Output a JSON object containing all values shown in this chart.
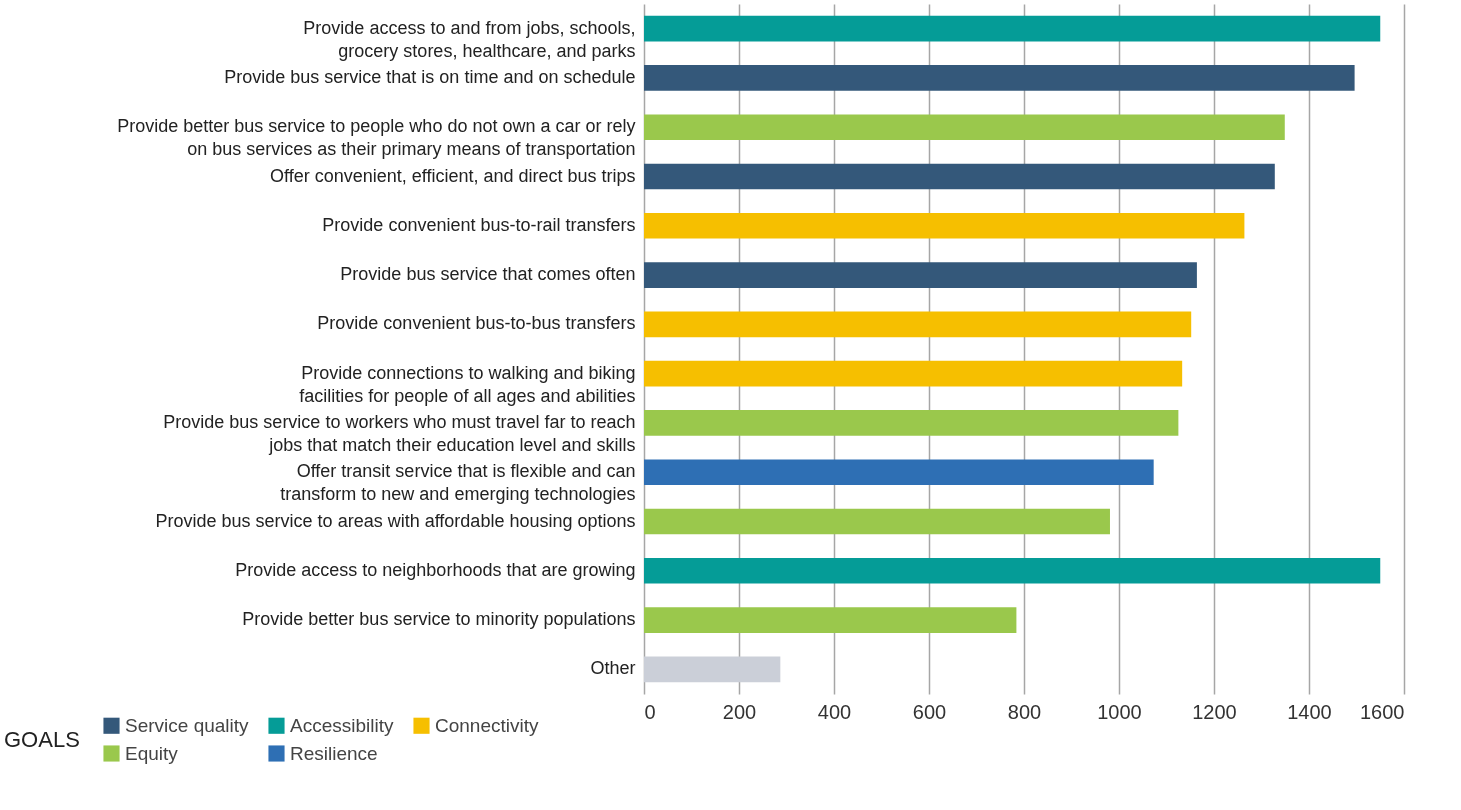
{
  "chart_data": {
    "type": "bar",
    "orientation": "horizontal",
    "categories": [
      "Provide access to and from jobs, schools, grocery stores, healthcare, and parks",
      "Provide bus service that is on time and on schedule",
      "Provide better bus service to people who do not own a car or rely on bus services as their primary means of transportation",
      "Offer convenient, efficient, and direct bus trips",
      "Provide convenient bus-to-rail transfers",
      "Provide bus service that comes often",
      "Provide convenient bus-to-bus transfers",
      "Provide connections to walking and biking facilities for people of all ages and abilities",
      "Provide bus service to workers who must travel far to reach jobs that match their education level and skills",
      "Offer transit service that is flexible and can transform to new and emerging technologies",
      "Provide bus service to areas with affordable housing options",
      "Provide access to neighborhoods that are growing",
      "Provide better bus service to minority populations",
      "Other"
    ],
    "series": [
      {
        "name": "Service quality",
        "color": "#34587a",
        "values": [
          null,
          1496,
          null,
          1328,
          null,
          1164,
          null,
          null,
          null,
          null,
          null,
          null,
          null,
          null
        ]
      },
      {
        "name": "Accessibility",
        "color": "#059c97",
        "values": [
          1550,
          null,
          null,
          null,
          null,
          null,
          null,
          null,
          null,
          null,
          null,
          1550,
          null,
          null
        ]
      },
      {
        "name": "Connectivity",
        "color": "#f6bf00",
        "values": [
          null,
          null,
          null,
          null,
          1264,
          null,
          1152,
          1133,
          null,
          null,
          null,
          null,
          null,
          null
        ]
      },
      {
        "name": "Equity",
        "color": "#9ac84c",
        "values": [
          null,
          null,
          1349,
          null,
          null,
          null,
          null,
          null,
          1125,
          null,
          981,
          null,
          784,
          null
        ]
      },
      {
        "name": "Resilience",
        "color": "#2e6fb4",
        "values": [
          null,
          null,
          null,
          null,
          null,
          null,
          null,
          null,
          null,
          1073,
          null,
          null,
          null,
          null
        ]
      },
      {
        "color": "#cbcfd8",
        "values": [
          null,
          null,
          null,
          null,
          null,
          null,
          null,
          null,
          null,
          null,
          null,
          null,
          null,
          287
        ]
      }
    ],
    "xlim": [
      0,
      1600
    ],
    "xticks": [
      0,
      200,
      400,
      600,
      800,
      1000,
      1200,
      1400,
      1600
    ],
    "grid": "x",
    "legend": "bottom left",
    "legend_title": "GOALS"
  }
}
